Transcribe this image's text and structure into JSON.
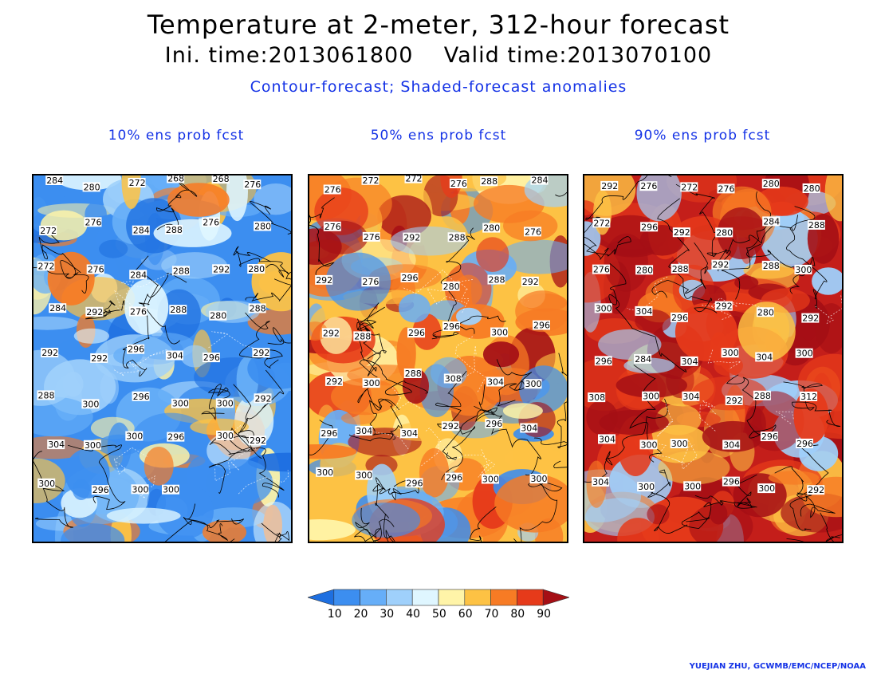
{
  "header": {
    "title": "Temperature at 2-meter, 312-hour forecast",
    "subtitle": "Ini. time:2013061800    Valid time:2013070100",
    "description": "Contour-forecast; Shaded-forecast anomalies"
  },
  "panels": [
    {
      "title": "10% ens prob fcst",
      "tone": "cool",
      "labels": [
        "284",
        "280",
        "272",
        "268",
        "268",
        "276",
        "272",
        "276",
        "284",
        "288",
        "276",
        "280",
        "272",
        "276",
        "284",
        "288",
        "292",
        "280",
        "284",
        "292",
        "276",
        "288",
        "280",
        "288",
        "292",
        "292",
        "296",
        "304",
        "296",
        "292",
        "288",
        "300",
        "296",
        "300",
        "300",
        "292",
        "304",
        "300",
        "300",
        "296",
        "300",
        "292",
        "300",
        "296",
        "300",
        "300"
      ]
    },
    {
      "title": "50% ens prob fcst",
      "tone": "mixed",
      "labels": [
        "276",
        "272",
        "272",
        "276",
        "288",
        "284",
        "276",
        "276",
        "292",
        "288",
        "280",
        "276",
        "292",
        "276",
        "296",
        "280",
        "288",
        "292",
        "292",
        "288",
        "296",
        "296",
        "300",
        "296",
        "292",
        "300",
        "288",
        "308",
        "304",
        "300",
        "296",
        "304",
        "304",
        "292",
        "296",
        "304",
        "300",
        "300",
        "296",
        "296",
        "300",
        "300"
      ]
    },
    {
      "title": "90% ens prob fcst",
      "tone": "warm",
      "labels": [
        "292",
        "276",
        "272",
        "276",
        "280",
        "280",
        "272",
        "296",
        "292",
        "280",
        "284",
        "288",
        "276",
        "280",
        "288",
        "292",
        "288",
        "300",
        "300",
        "304",
        "296",
        "292",
        "280",
        "292",
        "296",
        "284",
        "304",
        "300",
        "304",
        "300",
        "308",
        "300",
        "304",
        "292",
        "288",
        "312",
        "304",
        "300",
        "300",
        "304",
        "296",
        "296",
        "304",
        "300",
        "300",
        "296",
        "300",
        "292"
      ]
    }
  ],
  "colorbar": {
    "ticks": [
      "10",
      "20",
      "30",
      "40",
      "50",
      "60",
      "70",
      "80",
      "90"
    ],
    "colors": [
      "#1e6fe0",
      "#3c8ef0",
      "#66aef8",
      "#9fd0fb",
      "#dff6ff",
      "#fff4a8",
      "#fdc244",
      "#f77b24",
      "#e63a1a",
      "#a50f15"
    ]
  },
  "credit": "YUEJIAN ZHU, GCWMB/EMC/NCEP/NOAA"
}
